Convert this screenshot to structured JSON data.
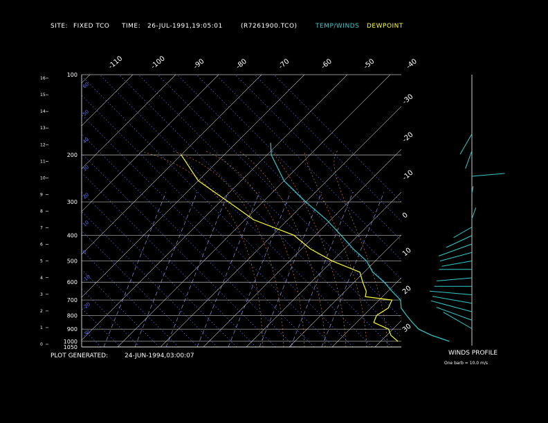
{
  "header": {
    "site_label": "SITE:",
    "site_value": "FIXED TCO",
    "time_label": "TIME:",
    "time_value": "26-JUL-1991,19:05:01",
    "file_id": "(R7261900.TCO)",
    "legend_temp": "TEMP/WINDS",
    "legend_dew": "DEWPOINT"
  },
  "footer": {
    "generated_label": "PLOT GENERATED:",
    "generated_value": "24-JUN-1994,03:00:07",
    "winds_title": "WINDS PROFILE",
    "barb_note": "One barb = 10.0 m/s"
  },
  "colors": {
    "background": "#000000",
    "grid": "#c0c0c0",
    "temp": "#33cccc",
    "dewpoint": "#ffff33",
    "dry_adiabat": "#5577ff",
    "moist_adiabat": "#dd7744",
    "mixing_ratio": "#99aaff"
  },
  "chart_data": {
    "type": "skew-t",
    "pressure_levels": [
      "100",
      "200",
      "300",
      "400",
      "500",
      "600",
      "700",
      "800",
      "900",
      "1000",
      "1050"
    ],
    "pressure_values": [
      100,
      200,
      300,
      400,
      500,
      600,
      700,
      800,
      900,
      1000,
      1050
    ],
    "height_ticks": [
      "16",
      "15",
      "14",
      "13",
      "12",
      "11",
      "10",
      "9",
      "8",
      "7",
      "6",
      "5",
      "4",
      "3",
      "2",
      "1",
      "0"
    ],
    "top_temp_labels": [
      "-110",
      "-100",
      "-90",
      "-80",
      "-70",
      "-60",
      "-50",
      "-40"
    ],
    "right_temp_labels": [
      "-30",
      "-20",
      "-10",
      "0",
      "10",
      "20",
      "30"
    ],
    "dry_adiabat_labels": [
      "60",
      "50",
      "40",
      "30",
      "20",
      "10",
      "0",
      "-10",
      "-20",
      "-30"
    ],
    "temperature_profile": [
      {
        "p": 1000,
        "t": 26
      },
      {
        "p": 950,
        "t": 20.5
      },
      {
        "p": 900,
        "t": 16
      },
      {
        "p": 850,
        "t": 13
      },
      {
        "p": 800,
        "t": 10
      },
      {
        "p": 750,
        "t": 7
      },
      {
        "p": 700,
        "t": 5
      },
      {
        "p": 650,
        "t": 1
      },
      {
        "p": 600,
        "t": -3
      },
      {
        "p": 550,
        "t": -8
      },
      {
        "p": 500,
        "t": -12
      },
      {
        "p": 450,
        "t": -18
      },
      {
        "p": 400,
        "t": -24
      },
      {
        "p": 350,
        "t": -31
      },
      {
        "p": 300,
        "t": -40
      },
      {
        "p": 250,
        "t": -50
      },
      {
        "p": 200,
        "t": -59
      },
      {
        "p": 180,
        "t": -62
      }
    ],
    "dewpoint_profile": [
      {
        "p": 1000,
        "t": 14
      },
      {
        "p": 950,
        "t": 11
      },
      {
        "p": 900,
        "t": 9
      },
      {
        "p": 850,
        "t": 4
      },
      {
        "p": 800,
        "t": 3
      },
      {
        "p": 750,
        "t": 4
      },
      {
        "p": 700,
        "t": 3
      },
      {
        "p": 680,
        "t": -4
      },
      {
        "p": 650,
        "t": -5
      },
      {
        "p": 600,
        "t": -8
      },
      {
        "p": 550,
        "t": -11
      },
      {
        "p": 500,
        "t": -20
      },
      {
        "p": 450,
        "t": -28
      },
      {
        "p": 400,
        "t": -35
      },
      {
        "p": 350,
        "t": -48
      },
      {
        "p": 300,
        "t": -58
      },
      {
        "p": 250,
        "t": -70
      },
      {
        "p": 200,
        "t": -80
      }
    ],
    "wind_profile": [
      {
        "h": 1.0,
        "dir": 300,
        "spd": 14
      },
      {
        "h": 1.5,
        "dir": 290,
        "spd": 16
      },
      {
        "h": 2.0,
        "dir": 285,
        "spd": 18
      },
      {
        "h": 2.5,
        "dir": 280,
        "spd": 17
      },
      {
        "h": 3.0,
        "dir": 275,
        "spd": 18
      },
      {
        "h": 3.5,
        "dir": 270,
        "spd": 16
      },
      {
        "h": 4.0,
        "dir": 265,
        "spd": 15
      },
      {
        "h": 4.5,
        "dir": 270,
        "spd": 14
      },
      {
        "h": 5.0,
        "dir": 260,
        "spd": 13
      },
      {
        "h": 5.5,
        "dir": 255,
        "spd": 14
      },
      {
        "h": 6.0,
        "dir": 250,
        "spd": 15
      },
      {
        "h": 6.5,
        "dir": 245,
        "spd": 12
      },
      {
        "h": 7.0,
        "dir": 240,
        "spd": 9
      },
      {
        "h": 7.5,
        "dir": 20,
        "spd": 5
      },
      {
        "h": 9.0,
        "dir": 10,
        "spd": 3
      },
      {
        "h": 10.0,
        "dir": 85,
        "spd": 14
      },
      {
        "h": 11.5,
        "dir": 200,
        "spd": 8
      },
      {
        "h": 12.5,
        "dir": 210,
        "spd": 10
      }
    ]
  }
}
